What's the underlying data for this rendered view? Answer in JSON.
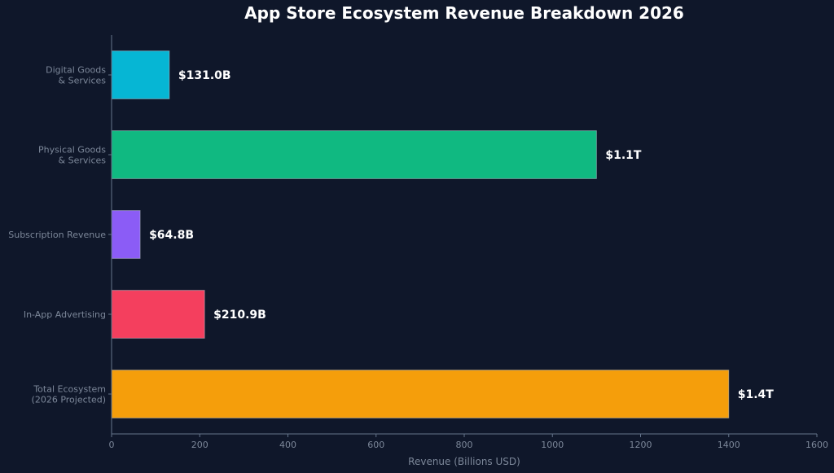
{
  "chart_data": {
    "type": "bar",
    "orientation": "horizontal",
    "title": "App Store Ecosystem Revenue Breakdown 2026",
    "xlabel": "Revenue (Billions USD)",
    "ylabel": "",
    "xlim": [
      0,
      1600
    ],
    "x_ticks": [
      "0",
      "200",
      "400",
      "600",
      "800",
      "1000",
      "1200",
      "1400",
      "1600"
    ],
    "grid": false,
    "categories": [
      [
        "Digital Goods",
        "& Services"
      ],
      [
        "Physical Goods",
        "& Services"
      ],
      [
        "Subscription Revenue"
      ],
      [
        "In-App Advertising"
      ],
      [
        "Total Ecosystem",
        "(2026 Projected)"
      ]
    ],
    "values": [
      131.0,
      1100,
      64.8,
      210.9,
      1400
    ],
    "value_labels": [
      "$131.0B",
      "$1.1T",
      "$64.8B",
      "$210.9B",
      "$1.4T"
    ],
    "colors": [
      "#06b6d4",
      "#10b981",
      "#8b5cf6",
      "#f43f5e",
      "#f59e0b"
    ],
    "background": "#0f172a",
    "axis_color": "#64748b",
    "text_color": "#7c8799"
  }
}
